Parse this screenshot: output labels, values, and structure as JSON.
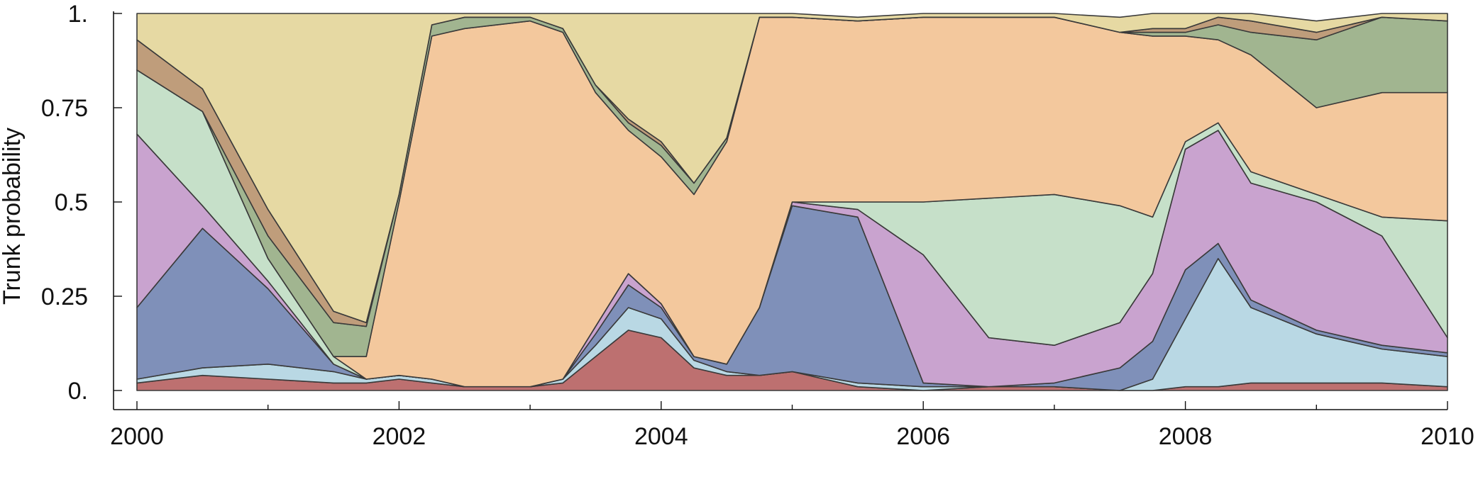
{
  "chart_data": {
    "type": "area",
    "stacked": true,
    "title": "",
    "xlabel": "",
    "ylabel": "Trunk probability",
    "xlim": [
      2000,
      2010
    ],
    "ylim": [
      0,
      1
    ],
    "xticks": [
      2000,
      2002,
      2004,
      2006,
      2008,
      2010
    ],
    "xtick_labels": [
      "2000",
      "2002",
      "2004",
      "2006",
      "2008",
      "2010"
    ],
    "yticks": [
      0,
      0.25,
      0.5,
      0.75,
      1
    ],
    "ytick_labels": [
      "0.",
      "0.25",
      "0.5",
      "0.75",
      "1."
    ],
    "grid": false,
    "legend": "none",
    "x": [
      2000.0,
      2000.5,
      2001.0,
      2001.5,
      2001.75,
      2002.0,
      2002.25,
      2002.5,
      2003.0,
      2003.25,
      2003.5,
      2003.75,
      2004.0,
      2004.25,
      2004.5,
      2004.75,
      2005.0,
      2005.5,
      2006.0,
      2006.5,
      2007.0,
      2007.5,
      2007.75,
      2008.0,
      2008.25,
      2008.5,
      2009.0,
      2009.5,
      2010.0
    ],
    "series": [
      {
        "color": "#bd7070",
        "values": [
          0.02,
          0.04,
          0.03,
          0.02,
          0.02,
          0.03,
          0.02,
          0.01,
          0.01,
          0.02,
          0.09,
          0.16,
          0.14,
          0.06,
          0.04,
          0.04,
          0.05,
          0.01,
          0.0,
          0.01,
          0.01,
          0.0,
          0.0,
          0.01,
          0.01,
          0.02,
          0.02,
          0.02,
          0.01
        ]
      },
      {
        "color": "#b9d8e4",
        "values": [
          0.01,
          0.02,
          0.04,
          0.03,
          0.01,
          0.01,
          0.01,
          0.0,
          0.0,
          0.01,
          0.03,
          0.06,
          0.05,
          0.02,
          0.01,
          0.0,
          0.0,
          0.01,
          0.01,
          0.0,
          0.0,
          0.0,
          0.03,
          0.18,
          0.34,
          0.2,
          0.13,
          0.09,
          0.08
        ]
      },
      {
        "color": "#7f90b9",
        "values": [
          0.19,
          0.37,
          0.2,
          0.02,
          0.0,
          0.0,
          0.0,
          0.0,
          0.0,
          0.0,
          0.03,
          0.06,
          0.03,
          0.01,
          0.02,
          0.18,
          0.44,
          0.44,
          0.01,
          0.0,
          0.01,
          0.06,
          0.1,
          0.13,
          0.04,
          0.02,
          0.01,
          0.01,
          0.01
        ]
      },
      {
        "color": "#c9a3cf",
        "values": [
          0.46,
          0.06,
          0.02,
          0.0,
          0.0,
          0.0,
          0.0,
          0.0,
          0.0,
          0.0,
          0.02,
          0.03,
          0.01,
          0.0,
          0.0,
          0.0,
          0.01,
          0.02,
          0.34,
          0.13,
          0.1,
          0.12,
          0.18,
          0.32,
          0.3,
          0.31,
          0.34,
          0.29,
          0.04
        ]
      },
      {
        "color": "#c6e0c9",
        "values": [
          0.17,
          0.25,
          0.06,
          0.02,
          0.0,
          0.0,
          0.0,
          0.0,
          0.0,
          0.0,
          0.0,
          0.0,
          0.0,
          0.0,
          0.0,
          0.0,
          0.0,
          0.02,
          0.14,
          0.37,
          0.4,
          0.31,
          0.15,
          0.02,
          0.02,
          0.03,
          0.02,
          0.05,
          0.31
        ]
      },
      {
        "color": "#f3c89d",
        "values": [
          0.0,
          0.0,
          0.0,
          0.0,
          0.06,
          0.46,
          0.91,
          0.95,
          0.97,
          0.92,
          0.62,
          0.38,
          0.39,
          0.43,
          0.59,
          0.77,
          0.49,
          0.48,
          0.49,
          0.48,
          0.47,
          0.46,
          0.48,
          0.28,
          0.22,
          0.31,
          0.23,
          0.33,
          0.34
        ]
      },
      {
        "color": "#a1b590",
        "values": [
          0.0,
          0.0,
          0.06,
          0.09,
          0.08,
          0.02,
          0.03,
          0.03,
          0.01,
          0.01,
          0.02,
          0.02,
          0.03,
          0.03,
          0.01,
          0.0,
          0.0,
          0.0,
          0.0,
          0.0,
          0.0,
          0.0,
          0.01,
          0.01,
          0.04,
          0.06,
          0.18,
          0.2,
          0.19
        ]
      },
      {
        "color": "#bf9d7b",
        "values": [
          0.08,
          0.06,
          0.07,
          0.03,
          0.01,
          0.0,
          0.0,
          0.0,
          0.0,
          0.0,
          0.0,
          0.01,
          0.01,
          0.0,
          0.0,
          0.0,
          0.0,
          0.0,
          0.0,
          0.0,
          0.0,
          0.0,
          0.01,
          0.01,
          0.02,
          0.03,
          0.02,
          0.0,
          0.0
        ]
      },
      {
        "color": "#e6d9a3",
        "values": [
          0.07,
          0.2,
          0.52,
          0.79,
          0.82,
          0.48,
          0.03,
          0.01,
          0.01,
          0.04,
          0.19,
          0.28,
          0.34,
          0.45,
          0.33,
          0.01,
          0.01,
          0.01,
          0.01,
          0.01,
          0.01,
          0.04,
          0.04,
          0.04,
          0.01,
          0.02,
          0.03,
          0.01,
          0.02
        ]
      }
    ]
  }
}
